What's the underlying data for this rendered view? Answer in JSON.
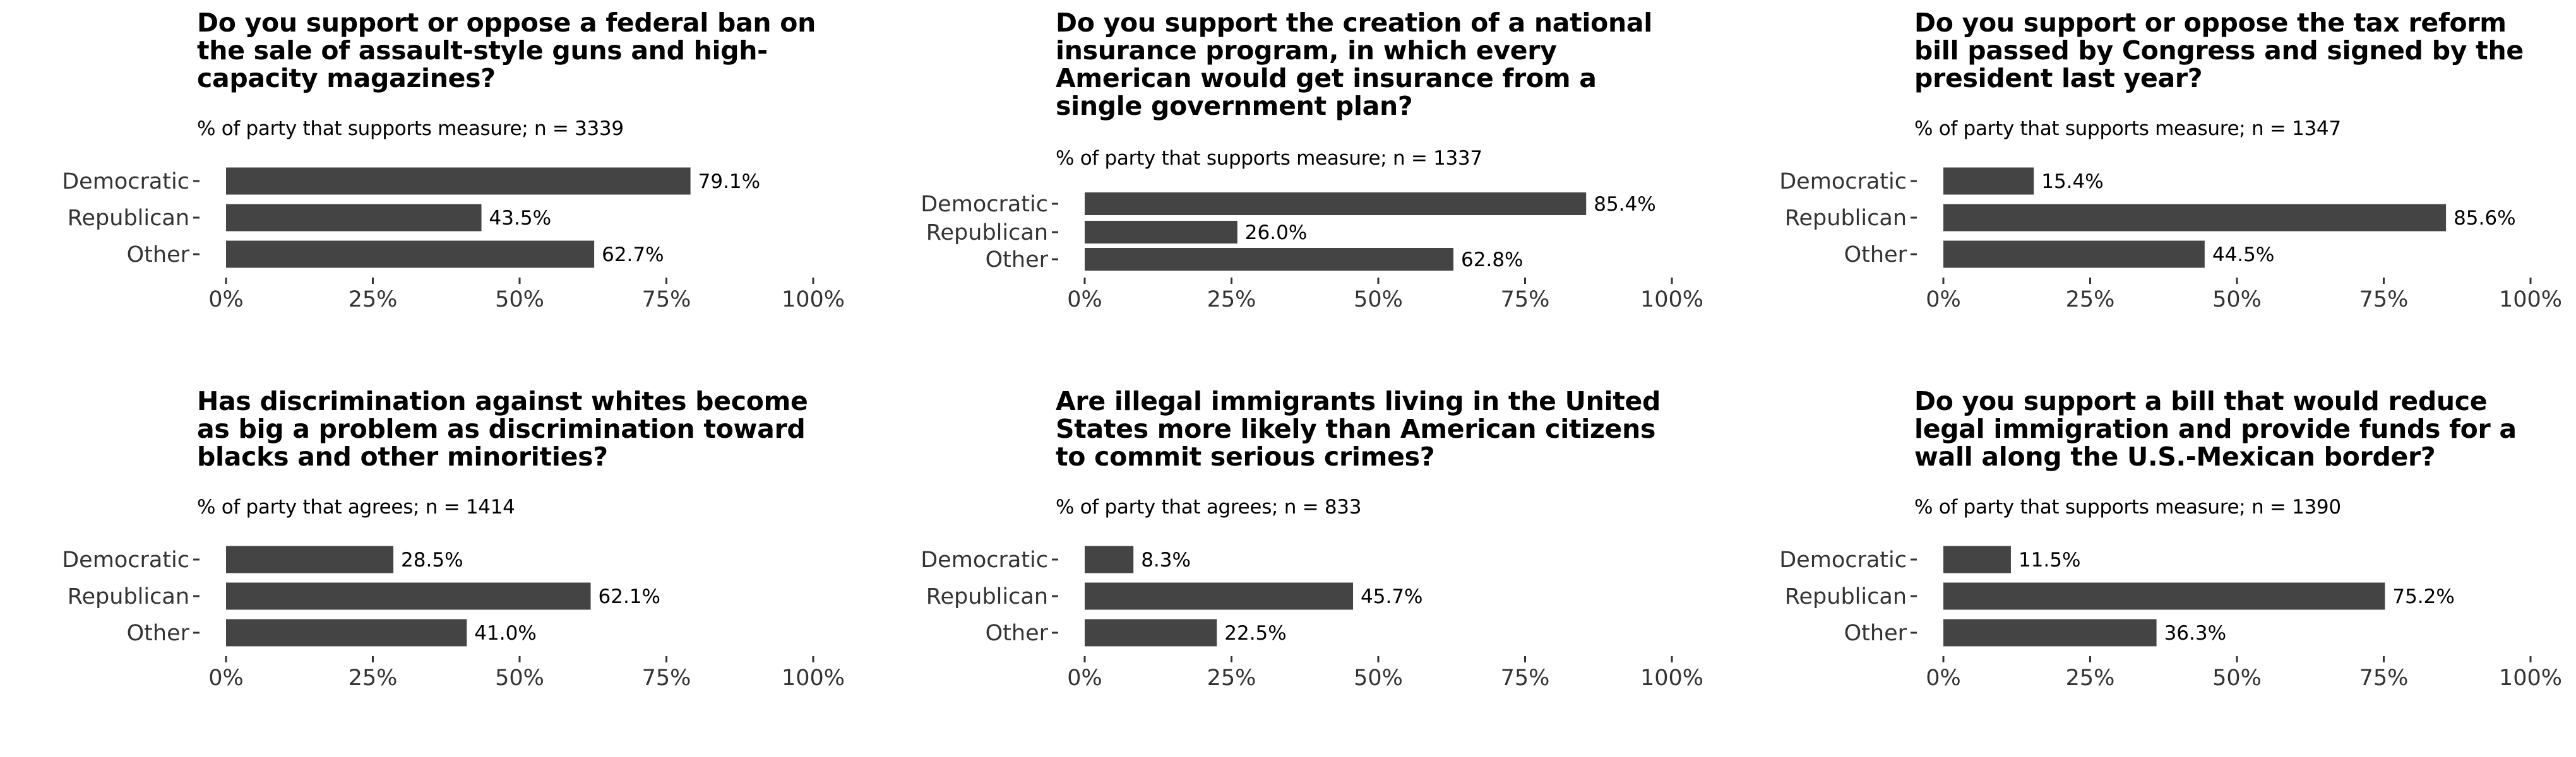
{
  "chart_data": [
    {
      "type": "bar",
      "orientation": "horizontal",
      "title": "Do you support or oppose a federal ban on the sale of assault-style guns and high-capacity magazines?",
      "subtitle": "% of party that supports measure; n = 3339",
      "categories": [
        "Democratic",
        "Republican",
        "Other"
      ],
      "values": [
        79.1,
        43.5,
        62.7
      ],
      "value_labels": [
        "79.1%",
        "43.5%",
        "62.7%"
      ],
      "xlim": [
        0,
        100
      ],
      "x_ticks": [
        "0%",
        "25%",
        "50%",
        "75%",
        "100%"
      ],
      "bar_color": "#444444",
      "grid": false
    },
    {
      "type": "bar",
      "orientation": "horizontal",
      "title": "Do you support the creation of a national insurance program, in which every American would get insurance from a single government plan?",
      "subtitle": "% of party that supports measure; n = 1337",
      "categories": [
        "Democratic",
        "Republican",
        "Other"
      ],
      "values": [
        85.4,
        26.0,
        62.8
      ],
      "value_labels": [
        "85.4%",
        "26.0%",
        "62.8%"
      ],
      "xlim": [
        0,
        100
      ],
      "x_ticks": [
        "0%",
        "25%",
        "50%",
        "75%",
        "100%"
      ],
      "bar_color": "#444444",
      "grid": false
    },
    {
      "type": "bar",
      "orientation": "horizontal",
      "title": "Do you support or oppose the tax reform bill passed by Congress and signed by the president last year?",
      "subtitle": "% of party that supports measure; n = 1347",
      "categories": [
        "Democratic",
        "Republican",
        "Other"
      ],
      "values": [
        15.4,
        85.6,
        44.5
      ],
      "value_labels": [
        "15.4%",
        "85.6%",
        "44.5%"
      ],
      "xlim": [
        0,
        100
      ],
      "x_ticks": [
        "0%",
        "25%",
        "50%",
        "75%",
        "100%"
      ],
      "bar_color": "#444444",
      "grid": false
    },
    {
      "type": "bar",
      "orientation": "horizontal",
      "title": "Has discrimination against whites become as big a problem as discrimination toward blacks and other minorities?",
      "subtitle": "% of party that agrees; n = 1414",
      "categories": [
        "Democratic",
        "Republican",
        "Other"
      ],
      "values": [
        28.5,
        62.1,
        41.0
      ],
      "value_labels": [
        "28.5%",
        "62.1%",
        "41.0%"
      ],
      "xlim": [
        0,
        100
      ],
      "x_ticks": [
        "0%",
        "25%",
        "50%",
        "75%",
        "100%"
      ],
      "bar_color": "#444444",
      "grid": false
    },
    {
      "type": "bar",
      "orientation": "horizontal",
      "title": "Are illegal immigrants living in the United States more likely than American citizens to commit serious crimes?",
      "subtitle": "% of party that agrees; n = 833",
      "categories": [
        "Democratic",
        "Republican",
        "Other"
      ],
      "values": [
        8.3,
        45.7,
        22.5
      ],
      "value_labels": [
        "8.3%",
        "45.7%",
        "22.5%"
      ],
      "xlim": [
        0,
        100
      ],
      "x_ticks": [
        "0%",
        "25%",
        "50%",
        "75%",
        "100%"
      ],
      "bar_color": "#444444",
      "grid": false
    },
    {
      "type": "bar",
      "orientation": "horizontal",
      "title": "Do you support a bill that would reduce legal immigration and provide funds for a wall along the U.S.-Mexican border?",
      "subtitle": "% of party that supports measure; n = 1390",
      "categories": [
        "Democratic",
        "Republican",
        "Other"
      ],
      "values": [
        11.5,
        75.2,
        36.3
      ],
      "value_labels": [
        "11.5%",
        "75.2%",
        "36.3%"
      ],
      "xlim": [
        0,
        100
      ],
      "x_ticks": [
        "0%",
        "25%",
        "50%",
        "75%",
        "100%"
      ],
      "bar_color": "#444444",
      "grid": false
    }
  ]
}
